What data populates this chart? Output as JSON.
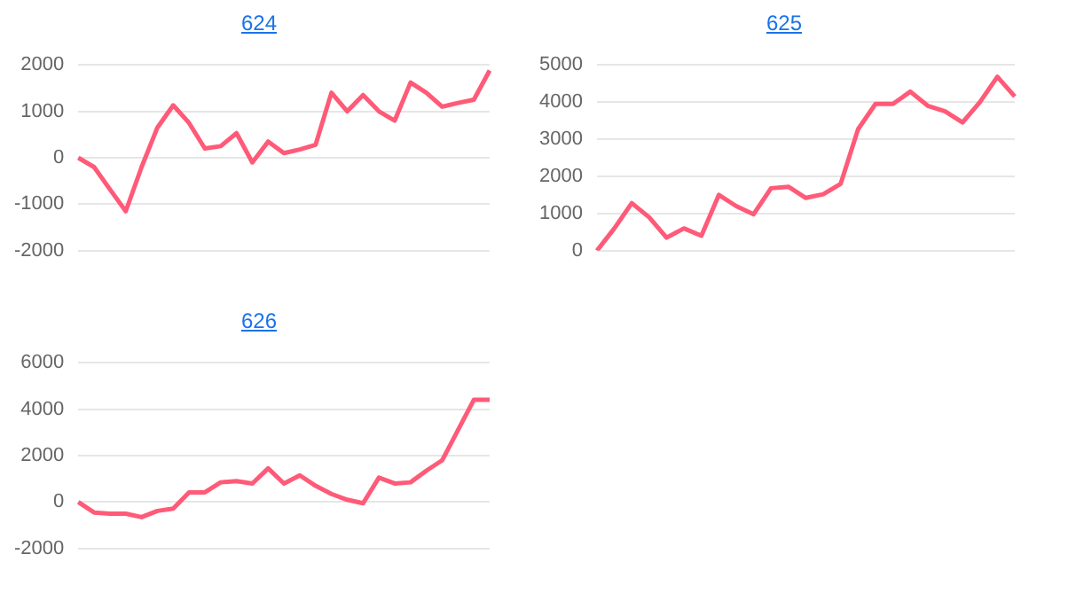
{
  "chart_data": [
    {
      "type": "line",
      "title": "624",
      "categories": [
        null,
        null,
        null,
        null,
        null,
        null,
        null,
        null,
        null,
        null,
        null,
        null,
        null,
        null,
        null,
        null,
        null,
        null,
        null,
        null,
        null,
        null,
        null,
        null,
        null,
        null,
        null
      ],
      "series": [
        {
          "color": "#ff5a78",
          "values": [
            0,
            -200,
            -680,
            -1150,
            -200,
            650,
            1130,
            750,
            200,
            250,
            530,
            -100,
            350,
            100,
            180,
            280,
            1400,
            1000,
            1350,
            1000,
            800,
            1620,
            1400,
            1100,
            1180,
            1250,
            1880
          ]
        }
      ],
      "ylim": [
        -2000,
        2000
      ],
      "yticks": [
        -2000,
        -1000,
        0,
        1000,
        2000
      ],
      "grid": "y",
      "tick_labels": "y",
      "marker": "none"
    },
    {
      "type": "line",
      "title": "625",
      "categories": [
        null,
        null,
        null,
        null,
        null,
        null,
        null,
        null,
        null,
        null,
        null,
        null,
        null,
        null,
        null,
        null,
        null,
        null,
        null,
        null,
        null,
        null,
        null,
        null,
        null
      ],
      "series": [
        {
          "color": "#ff5a78",
          "values": [
            0,
            600,
            1280,
            900,
            350,
            600,
            400,
            1500,
            1200,
            980,
            1680,
            1720,
            1420,
            1520,
            1800,
            3270,
            3950,
            3950,
            4280,
            3900,
            3750,
            3450,
            4000,
            4680,
            4150
          ]
        }
      ],
      "ylim": [
        0,
        5000
      ],
      "yticks": [
        0,
        1000,
        2000,
        3000,
        4000,
        5000
      ],
      "grid": "y",
      "tick_labels": "y",
      "marker": "none"
    },
    {
      "type": "line",
      "title": "626",
      "categories": [
        null,
        null,
        null,
        null,
        null,
        null,
        null,
        null,
        null,
        null,
        null,
        null,
        null,
        null,
        null,
        null,
        null,
        null,
        null,
        null,
        null,
        null,
        null,
        null,
        null,
        null,
        null
      ],
      "series": [
        {
          "color": "#ff5a78",
          "values": [
            0,
            -450,
            -500,
            -500,
            -650,
            -380,
            -280,
            420,
            420,
            850,
            900,
            800,
            1450,
            800,
            1150,
            700,
            350,
            100,
            -50,
            1050,
            800,
            850,
            1350,
            1800,
            3100,
            4400,
            4400
          ]
        }
      ],
      "ylim": [
        -2000,
        6000
      ],
      "yticks": [
        -2000,
        0,
        2000,
        4000,
        6000
      ],
      "grid": "y",
      "tick_labels": "y",
      "marker": "none"
    }
  ]
}
